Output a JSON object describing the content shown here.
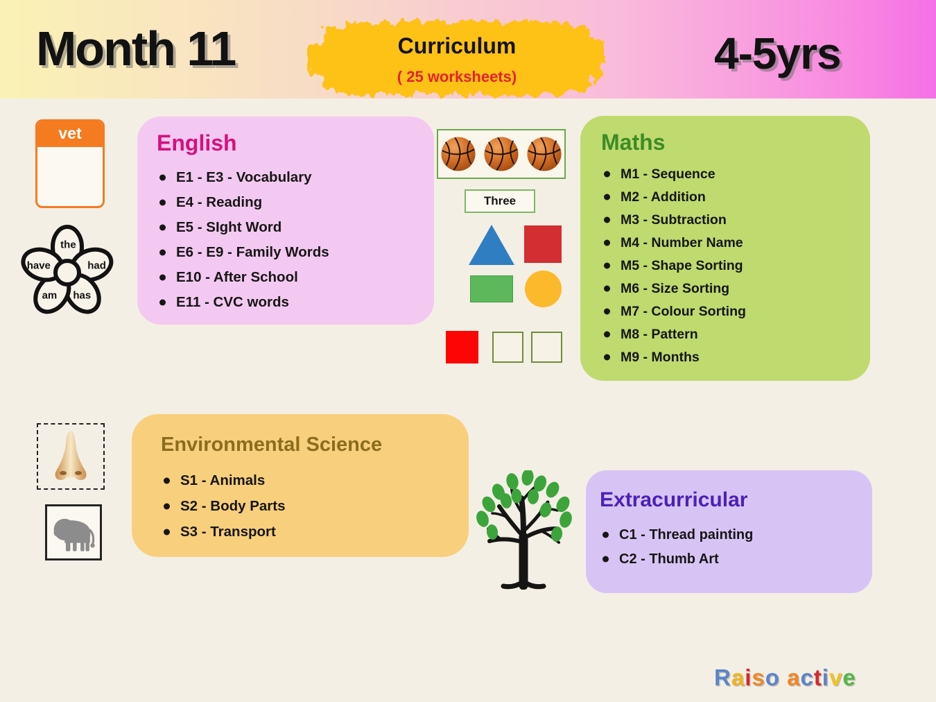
{
  "header": {
    "month": "Month 11",
    "curriculum": "Curriculum",
    "worksheets": "( 25 worksheets)",
    "age": "4-5yrs"
  },
  "sections": {
    "english": {
      "title": "English",
      "items": [
        "E1 - E3 - Vocabulary",
        "E4 - Reading",
        "E5 - SIght Word",
        "E6 - E9 - Family Words",
        "E10 - After School",
        "E11 - CVC words"
      ]
    },
    "maths": {
      "title": "Maths",
      "items": [
        "M1 - Sequence",
        "M2 - Addition",
        "M3 - Subtraction",
        "M4 - Number Name",
        "M5 - Shape Sorting",
        "M6 - Size Sorting",
        "M7 - Colour Sorting",
        "M8 - Pattern",
        "M9 - Months"
      ]
    },
    "environmental_science": {
      "title": "Environmental Science",
      "items": [
        "S1 - Animals",
        "S2 - Body Parts",
        "S3 - Transport"
      ]
    },
    "extracurricular": {
      "title": "Extracurricular",
      "items": [
        "C1 - Thread painting",
        "C2 - Thumb Art"
      ]
    }
  },
  "illustrations": {
    "vet_card": {
      "label": "vet"
    },
    "sight_word_flower": {
      "top": "the",
      "left": "have",
      "right": "had",
      "bottom_left": "am",
      "bottom_right": "has"
    },
    "counting": {
      "label": "Three",
      "basketball_count": "3"
    }
  },
  "logo": {
    "text": "Raiso active",
    "letters": [
      {
        "ch": "R",
        "color": "#5B85C8"
      },
      {
        "ch": "a",
        "color": "#F3B21D"
      },
      {
        "ch": "i",
        "color": "#D9262C"
      },
      {
        "ch": "s",
        "color": "#F08627"
      },
      {
        "ch": "o",
        "color": "#5B85C8"
      },
      {
        "ch": " ",
        "color": "#000000"
      },
      {
        "ch": "a",
        "color": "#F08627"
      },
      {
        "ch": "c",
        "color": "#5B85C8"
      },
      {
        "ch": "t",
        "color": "#D9262C"
      },
      {
        "ch": "i",
        "color": "#5B85C8"
      },
      {
        "ch": "v",
        "color": "#F3C11D"
      },
      {
        "ch": "e",
        "color": "#53B748"
      }
    ]
  },
  "colors": {
    "page_bg": "#F4EFE5",
    "header_gradient": [
      "#FAF2B5",
      "#F8DCC6",
      "#F9BBDB",
      "#F470E6"
    ],
    "splash_bg": "#FEC114",
    "worksheets_text": "#E3242B",
    "english_bg": "#F4C9F1",
    "english_title": "#D5117D",
    "maths_bg": "#BFDA6E",
    "maths_title": "#3D8B27",
    "env_bg": "#F8CF7C",
    "env_title": "#8A6D1E",
    "extra_bg": "#D7C4F4",
    "extra_title": "#4C1FB8",
    "vet_orange": "#F47B20",
    "shape_blue": "#2F7EC2",
    "shape_red": "#D32F33",
    "shape_green": "#5CB85A",
    "shape_yellow": "#FCB92B",
    "pattern_red": "#FE0505"
  }
}
